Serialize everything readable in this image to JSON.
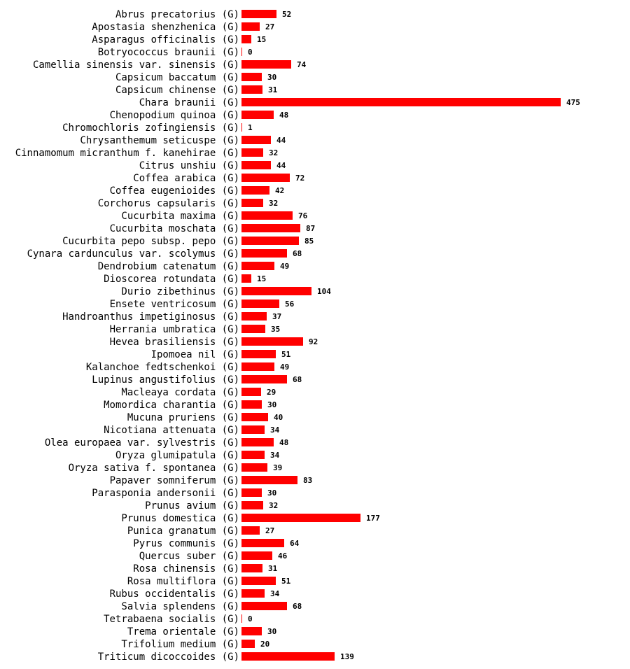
{
  "chart_data": {
    "type": "bar",
    "orientation": "horizontal",
    "bar_color": "#ff0000",
    "group_suffix": "(G)",
    "xlim": [
      0,
      475
    ],
    "categories": [
      "Abrus precatorius",
      "Apostasia shenzhenica",
      "Asparagus officinalis",
      "Botryococcus braunii",
      "Camellia sinensis var. sinensis",
      "Capsicum baccatum",
      "Capsicum chinense",
      "Chara braunii",
      "Chenopodium quinoa",
      "Chromochloris zofingiensis",
      "Chrysanthemum seticuspe",
      "Cinnamomum micranthum f. kanehirae",
      "Citrus unshiu",
      "Coffea arabica",
      "Coffea eugenioides",
      "Corchorus capsularis",
      "Cucurbita maxima",
      "Cucurbita moschata",
      "Cucurbita pepo subsp. pepo",
      "Cynara cardunculus var. scolymus",
      "Dendrobium catenatum",
      "Dioscorea rotundata",
      "Durio zibethinus",
      "Ensete ventricosum",
      "Handroanthus impetiginosus",
      "Herrania umbratica",
      "Hevea brasiliensis",
      "Ipomoea nil",
      "Kalanchoe fedtschenkoi",
      "Lupinus angustifolius",
      "Macleaya cordata",
      "Momordica charantia",
      "Mucuna pruriens",
      "Nicotiana attenuata",
      "Olea europaea var. sylvestris",
      "Oryza glumipatula",
      "Oryza sativa f. spontanea",
      "Papaver somniferum",
      "Parasponia andersonii",
      "Prunus avium",
      "Prunus domestica",
      "Punica granatum",
      "Pyrus communis",
      "Quercus suber",
      "Rosa chinensis",
      "Rosa multiflora",
      "Rubus occidentalis",
      "Salvia splendens",
      "Tetrabaena socialis",
      "Trema orientale",
      "Trifolium medium",
      "Triticum dicoccoides"
    ],
    "values": [
      52,
      27,
      15,
      0,
      74,
      30,
      31,
      475,
      48,
      1,
      44,
      32,
      44,
      72,
      42,
      32,
      76,
      87,
      85,
      68,
      49,
      15,
      104,
      56,
      37,
      35,
      92,
      51,
      49,
      68,
      29,
      30,
      40,
      34,
      48,
      34,
      39,
      83,
      30,
      32,
      177,
      27,
      64,
      46,
      31,
      51,
      34,
      68,
      0,
      30,
      20,
      139
    ]
  }
}
